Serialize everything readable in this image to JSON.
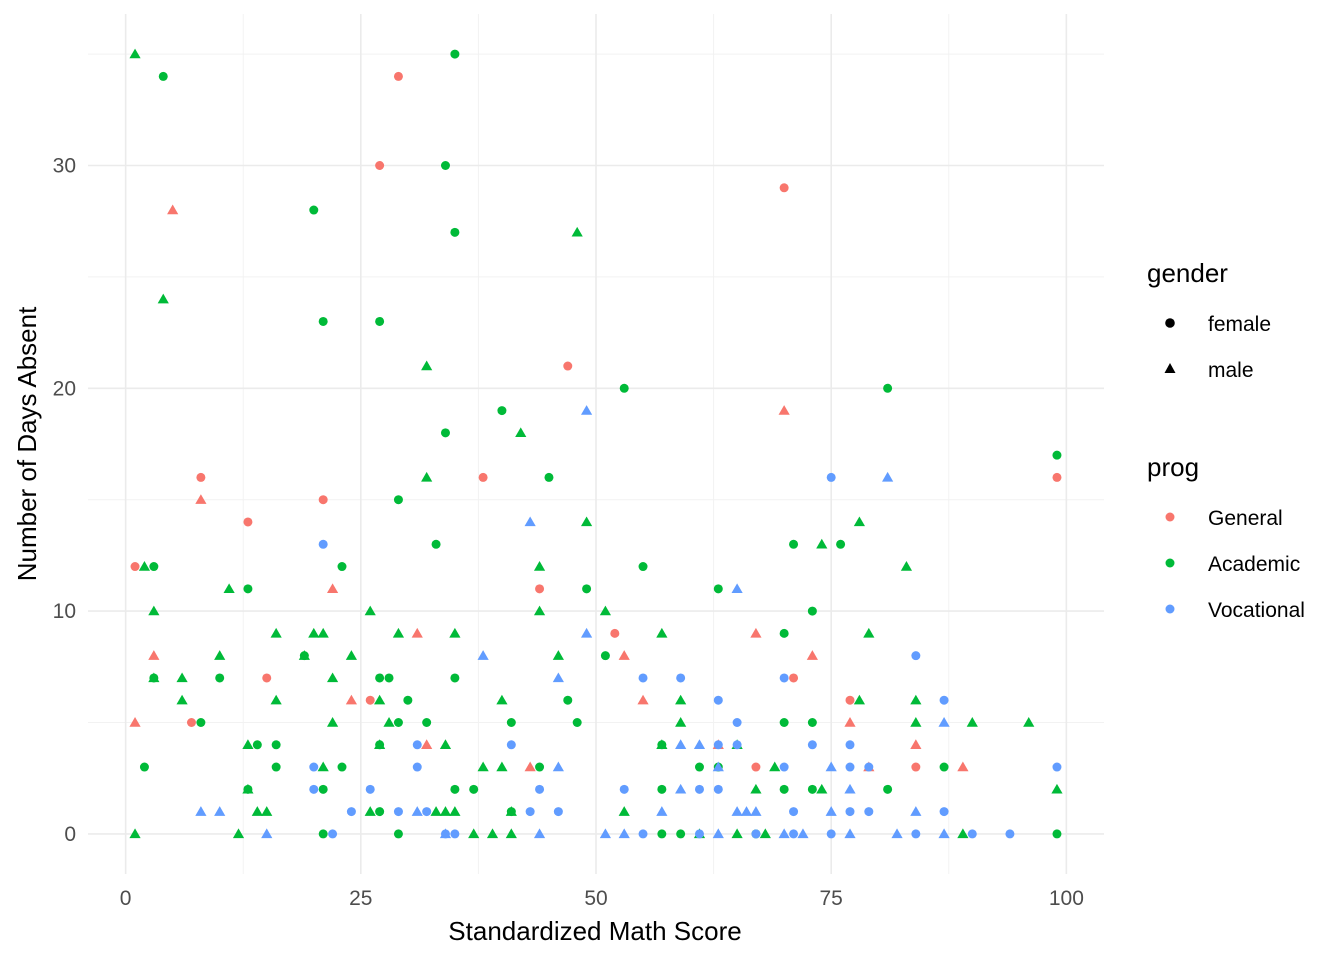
{
  "chart_data": {
    "type": "scatter",
    "xlabel": "Standardized Math Score",
    "ylabel": "Number of Days Absent",
    "xlim": [
      -4,
      104
    ],
    "ylim": [
      -1.8,
      36.8
    ],
    "x_ticks": [
      0,
      25,
      50,
      75,
      100
    ],
    "y_ticks": [
      0,
      10,
      20,
      30
    ],
    "grid": true,
    "legend_placement": "right",
    "legends": {
      "shape": {
        "title": "gender",
        "entries": [
          {
            "label": "female",
            "shape": "circle"
          },
          {
            "label": "male",
            "shape": "triangle"
          }
        ]
      },
      "color": {
        "title": "prog",
        "entries": [
          {
            "label": "General",
            "color": "#F8766D"
          },
          {
            "label": "Academic",
            "color": "#00BA38"
          },
          {
            "label": "Vocational",
            "color": "#619CFF"
          }
        ]
      }
    },
    "point_encoding": "[x, y, prog_index (0 General, 1 Academic, 2 Vocational), gender_index (0 female, 1 male)]",
    "points": [
      [
        1,
        12,
        0,
        0
      ],
      [
        1,
        5,
        0,
        1
      ],
      [
        3,
        8,
        0,
        1
      ],
      [
        5,
        28,
        0,
        1
      ],
      [
        7,
        5,
        0,
        0
      ],
      [
        8,
        16,
        0,
        0
      ],
      [
        8,
        15,
        0,
        1
      ],
      [
        13,
        14,
        0,
        0
      ],
      [
        15,
        7,
        0,
        0
      ],
      [
        21,
        15,
        0,
        0
      ],
      [
        22,
        11,
        0,
        1
      ],
      [
        24,
        6,
        0,
        1
      ],
      [
        26,
        6,
        0,
        0
      ],
      [
        27,
        30,
        0,
        0
      ],
      [
        29,
        34,
        0,
        0
      ],
      [
        31,
        9,
        0,
        1
      ],
      [
        32,
        4,
        0,
        1
      ],
      [
        38,
        16,
        0,
        0
      ],
      [
        43,
        3,
        0,
        1
      ],
      [
        44,
        11,
        0,
        0
      ],
      [
        47,
        21,
        0,
        0
      ],
      [
        52,
        9,
        0,
        0
      ],
      [
        53,
        8,
        0,
        1
      ],
      [
        55,
        6,
        0,
        1
      ],
      [
        63,
        4,
        0,
        1
      ],
      [
        67,
        9,
        0,
        1
      ],
      [
        67,
        3,
        0,
        0
      ],
      [
        70,
        29,
        0,
        0
      ],
      [
        70,
        19,
        0,
        1
      ],
      [
        71,
        7,
        0,
        0
      ],
      [
        73,
        8,
        0,
        1
      ],
      [
        77,
        6,
        0,
        0
      ],
      [
        77,
        5,
        0,
        1
      ],
      [
        79,
        3,
        0,
        1
      ],
      [
        84,
        4,
        0,
        1
      ],
      [
        84,
        3,
        0,
        0
      ],
      [
        89,
        3,
        0,
        1
      ],
      [
        99,
        16,
        0,
        0
      ],
      [
        1,
        35,
        1,
        1
      ],
      [
        1,
        0,
        1,
        1
      ],
      [
        2,
        12,
        1,
        1
      ],
      [
        2,
        3,
        1,
        0
      ],
      [
        3,
        12,
        1,
        0
      ],
      [
        3,
        10,
        1,
        1
      ],
      [
        3,
        7,
        1,
        1
      ],
      [
        3,
        7,
        1,
        0
      ],
      [
        4,
        34,
        1,
        0
      ],
      [
        4,
        24,
        1,
        1
      ],
      [
        6,
        7,
        1,
        1
      ],
      [
        6,
        6,
        1,
        1
      ],
      [
        8,
        5,
        1,
        0
      ],
      [
        10,
        8,
        1,
        1
      ],
      [
        10,
        7,
        1,
        0
      ],
      [
        11,
        11,
        1,
        1
      ],
      [
        12,
        0,
        1,
        1
      ],
      [
        13,
        11,
        1,
        0
      ],
      [
        13,
        4,
        1,
        1
      ],
      [
        13,
        2,
        1,
        1
      ],
      [
        13,
        2,
        1,
        0
      ],
      [
        14,
        4,
        1,
        0
      ],
      [
        14,
        1,
        1,
        1
      ],
      [
        15,
        1,
        1,
        1
      ],
      [
        16,
        9,
        1,
        1
      ],
      [
        16,
        6,
        1,
        1
      ],
      [
        16,
        4,
        1,
        0
      ],
      [
        16,
        3,
        1,
        0
      ],
      [
        19,
        8,
        1,
        0
      ],
      [
        19,
        8,
        1,
        1
      ],
      [
        20,
        28,
        1,
        0
      ],
      [
        20,
        9,
        1,
        1
      ],
      [
        21,
        23,
        1,
        0
      ],
      [
        21,
        9,
        1,
        1
      ],
      [
        21,
        3,
        1,
        1
      ],
      [
        21,
        2,
        1,
        0
      ],
      [
        21,
        0,
        1,
        0
      ],
      [
        22,
        7,
        1,
        1
      ],
      [
        22,
        5,
        1,
        1
      ],
      [
        23,
        12,
        1,
        0
      ],
      [
        23,
        3,
        1,
        0
      ],
      [
        24,
        8,
        1,
        1
      ],
      [
        26,
        10,
        1,
        1
      ],
      [
        26,
        1,
        1,
        1
      ],
      [
        27,
        23,
        1,
        0
      ],
      [
        27,
        7,
        1,
        0
      ],
      [
        27,
        6,
        1,
        1
      ],
      [
        27,
        4,
        1,
        1
      ],
      [
        27,
        4,
        1,
        0
      ],
      [
        27,
        1,
        1,
        0
      ],
      [
        28,
        7,
        1,
        0
      ],
      [
        28,
        5,
        1,
        1
      ],
      [
        29,
        15,
        1,
        0
      ],
      [
        29,
        9,
        1,
        1
      ],
      [
        29,
        5,
        1,
        0
      ],
      [
        29,
        0,
        1,
        0
      ],
      [
        30,
        6,
        1,
        0
      ],
      [
        32,
        21,
        1,
        1
      ],
      [
        32,
        16,
        1,
        1
      ],
      [
        32,
        5,
        1,
        0
      ],
      [
        33,
        13,
        1,
        0
      ],
      [
        33,
        1,
        1,
        1
      ],
      [
        34,
        30,
        1,
        0
      ],
      [
        34,
        18,
        1,
        0
      ],
      [
        34,
        4,
        1,
        1
      ],
      [
        34,
        1,
        1,
        1
      ],
      [
        35,
        35,
        1,
        0
      ],
      [
        35,
        27,
        1,
        0
      ],
      [
        35,
        9,
        1,
        1
      ],
      [
        35,
        7,
        1,
        0
      ],
      [
        35,
        2,
        1,
        0
      ],
      [
        35,
        1,
        1,
        1
      ],
      [
        37,
        2,
        1,
        0
      ],
      [
        37,
        0,
        1,
        1
      ],
      [
        38,
        3,
        1,
        1
      ],
      [
        39,
        0,
        1,
        1
      ],
      [
        40,
        19,
        1,
        0
      ],
      [
        40,
        6,
        1,
        1
      ],
      [
        40,
        3,
        1,
        1
      ],
      [
        41,
        5,
        1,
        0
      ],
      [
        41,
        1,
        1,
        1
      ],
      [
        41,
        1,
        1,
        0
      ],
      [
        41,
        0,
        1,
        1
      ],
      [
        42,
        18,
        1,
        1
      ],
      [
        44,
        12,
        1,
        1
      ],
      [
        44,
        10,
        1,
        1
      ],
      [
        44,
        3,
        1,
        0
      ],
      [
        45,
        16,
        1,
        0
      ],
      [
        46,
        8,
        1,
        1
      ],
      [
        47,
        6,
        1,
        0
      ],
      [
        48,
        27,
        1,
        1
      ],
      [
        48,
        5,
        1,
        0
      ],
      [
        49,
        14,
        1,
        1
      ],
      [
        49,
        11,
        1,
        0
      ],
      [
        51,
        10,
        1,
        1
      ],
      [
        51,
        8,
        1,
        0
      ],
      [
        53,
        20,
        1,
        0
      ],
      [
        53,
        1,
        1,
        1
      ],
      [
        55,
        12,
        1,
        0
      ],
      [
        57,
        9,
        1,
        1
      ],
      [
        57,
        4,
        1,
        1
      ],
      [
        57,
        4,
        1,
        0
      ],
      [
        57,
        2,
        1,
        0
      ],
      [
        57,
        0,
        1,
        0
      ],
      [
        59,
        6,
        1,
        1
      ],
      [
        59,
        5,
        1,
        1
      ],
      [
        59,
        0,
        1,
        0
      ],
      [
        61,
        3,
        1,
        0
      ],
      [
        61,
        0,
        1,
        1
      ],
      [
        63,
        11,
        1,
        0
      ],
      [
        63,
        3,
        1,
        0
      ],
      [
        65,
        4,
        1,
        1
      ],
      [
        65,
        0,
        1,
        1
      ],
      [
        67,
        2,
        1,
        1
      ],
      [
        67,
        0,
        1,
        0
      ],
      [
        68,
        0,
        1,
        1
      ],
      [
        69,
        3,
        1,
        1
      ],
      [
        70,
        9,
        1,
        0
      ],
      [
        70,
        5,
        1,
        0
      ],
      [
        70,
        2,
        1,
        0
      ],
      [
        71,
        13,
        1,
        0
      ],
      [
        73,
        10,
        1,
        0
      ],
      [
        73,
        5,
        1,
        0
      ],
      [
        73,
        2,
        1,
        0
      ],
      [
        74,
        13,
        1,
        1
      ],
      [
        74,
        2,
        1,
        1
      ],
      [
        76,
        13,
        1,
        0
      ],
      [
        78,
        14,
        1,
        1
      ],
      [
        78,
        6,
        1,
        1
      ],
      [
        79,
        9,
        1,
        1
      ],
      [
        81,
        20,
        1,
        0
      ],
      [
        81,
        2,
        1,
        0
      ],
      [
        83,
        12,
        1,
        1
      ],
      [
        84,
        6,
        1,
        1
      ],
      [
        84,
        5,
        1,
        1
      ],
      [
        87,
        3,
        1,
        0
      ],
      [
        89,
        0,
        1,
        1
      ],
      [
        90,
        5,
        1,
        1
      ],
      [
        96,
        5,
        1,
        1
      ],
      [
        99,
        17,
        1,
        0
      ],
      [
        99,
        2,
        1,
        1
      ],
      [
        99,
        0,
        1,
        0
      ],
      [
        8,
        1,
        2,
        1
      ],
      [
        10,
        1,
        2,
        1
      ],
      [
        15,
        0,
        2,
        1
      ],
      [
        20,
        3,
        2,
        0
      ],
      [
        20,
        2,
        2,
        0
      ],
      [
        21,
        13,
        2,
        0
      ],
      [
        22,
        0,
        2,
        0
      ],
      [
        24,
        1,
        2,
        0
      ],
      [
        26,
        2,
        2,
        0
      ],
      [
        29,
        1,
        2,
        0
      ],
      [
        31,
        4,
        2,
        0
      ],
      [
        31,
        3,
        2,
        0
      ],
      [
        31,
        1,
        2,
        1
      ],
      [
        32,
        1,
        2,
        0
      ],
      [
        34,
        0,
        2,
        0
      ],
      [
        34,
        0,
        2,
        1
      ],
      [
        35,
        0,
        2,
        0
      ],
      [
        38,
        8,
        2,
        1
      ],
      [
        41,
        4,
        2,
        0
      ],
      [
        43,
        14,
        2,
        1
      ],
      [
        43,
        1,
        2,
        0
      ],
      [
        44,
        2,
        2,
        0
      ],
      [
        44,
        0,
        2,
        1
      ],
      [
        46,
        7,
        2,
        1
      ],
      [
        46,
        3,
        2,
        1
      ],
      [
        46,
        1,
        2,
        0
      ],
      [
        49,
        19,
        2,
        1
      ],
      [
        49,
        9,
        2,
        1
      ],
      [
        51,
        0,
        2,
        1
      ],
      [
        53,
        2,
        2,
        0
      ],
      [
        53,
        0,
        2,
        1
      ],
      [
        55,
        7,
        2,
        0
      ],
      [
        55,
        0,
        2,
        0
      ],
      [
        57,
        1,
        2,
        1
      ],
      [
        59,
        7,
        2,
        0
      ],
      [
        59,
        4,
        2,
        1
      ],
      [
        59,
        2,
        2,
        1
      ],
      [
        61,
        4,
        2,
        1
      ],
      [
        61,
        2,
        2,
        0
      ],
      [
        61,
        0,
        2,
        0
      ],
      [
        63,
        6,
        2,
        0
      ],
      [
        63,
        4,
        2,
        0
      ],
      [
        63,
        3,
        2,
        1
      ],
      [
        63,
        2,
        2,
        0
      ],
      [
        63,
        0,
        2,
        1
      ],
      [
        65,
        11,
        2,
        1
      ],
      [
        65,
        5,
        2,
        0
      ],
      [
        65,
        4,
        2,
        0
      ],
      [
        65,
        1,
        2,
        1
      ],
      [
        66,
        1,
        2,
        1
      ],
      [
        67,
        1,
        2,
        1
      ],
      [
        67,
        0,
        2,
        0
      ],
      [
        70,
        7,
        2,
        0
      ],
      [
        70,
        3,
        2,
        0
      ],
      [
        70,
        0,
        2,
        1
      ],
      [
        71,
        1,
        2,
        0
      ],
      [
        71,
        0,
        2,
        0
      ],
      [
        72,
        0,
        2,
        1
      ],
      [
        73,
        4,
        2,
        0
      ],
      [
        75,
        16,
        2,
        0
      ],
      [
        75,
        3,
        2,
        1
      ],
      [
        75,
        1,
        2,
        1
      ],
      [
        75,
        0,
        2,
        0
      ],
      [
        77,
        4,
        2,
        0
      ],
      [
        77,
        3,
        2,
        0
      ],
      [
        77,
        2,
        2,
        1
      ],
      [
        77,
        1,
        2,
        0
      ],
      [
        77,
        0,
        2,
        1
      ],
      [
        79,
        3,
        2,
        0
      ],
      [
        79,
        1,
        2,
        0
      ],
      [
        81,
        16,
        2,
        1
      ],
      [
        82,
        0,
        2,
        1
      ],
      [
        84,
        8,
        2,
        0
      ],
      [
        84,
        1,
        2,
        1
      ],
      [
        84,
        0,
        2,
        0
      ],
      [
        87,
        6,
        2,
        0
      ],
      [
        87,
        5,
        2,
        1
      ],
      [
        87,
        1,
        2,
        0
      ],
      [
        87,
        0,
        2,
        1
      ],
      [
        90,
        0,
        2,
        0
      ],
      [
        94,
        0,
        2,
        0
      ],
      [
        99,
        3,
        2,
        0
      ]
    ]
  }
}
